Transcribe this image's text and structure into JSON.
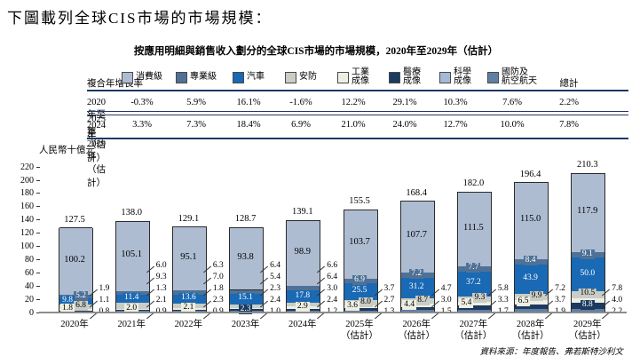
{
  "page": {
    "title": "下圖載列全球CIS市場的市場規模：",
    "source": "資料來源：年度報告、弗若斯特沙利文"
  },
  "table": {
    "row_header": "複合年增長率",
    "total_label": "總計",
    "rows": [
      {
        "label_lines": [
          "2020年至2024年"
        ],
        "values": [
          "-0.3%",
          "5.9%",
          "16.1%",
          "-1.6%",
          "12.2%",
          "29.1%",
          "10.3%",
          "7.6%"
        ],
        "total": "2.2%"
      },
      {
        "label_lines": [
          "2025年（估計）",
          "至2029年（估計）"
        ],
        "values": [
          "3.3%",
          "7.3%",
          "18.4%",
          "6.9%",
          "21.0%",
          "24.0%",
          "12.7%",
          "10.0%"
        ],
        "total": "7.8%"
      }
    ]
  },
  "chart_data": {
    "type": "bar",
    "stacked": true,
    "title": "按應用明細與銷售收入劃分的全球CIS市場的市場規模，2020年至2029年（估計）",
    "unit_label": "人民幣十億元",
    "ylim": [
      0,
      220
    ],
    "ytick_step": 20,
    "grid": false,
    "categories": [
      [
        "2020年"
      ],
      [
        "2021年"
      ],
      [
        "2022年"
      ],
      [
        "2023年"
      ],
      [
        "2024年"
      ],
      [
        "2025年",
        "（估計）"
      ],
      [
        "2026年",
        "（估計）"
      ],
      [
        "2027年",
        "（估計）"
      ],
      [
        "2028年",
        "（估計）"
      ],
      [
        "2029年",
        "（估計）"
      ]
    ],
    "series": [
      {
        "key": "consumer",
        "name": "消費級",
        "label_lines": [
          "消費級"
        ],
        "color": "#aebcd2",
        "text_color": "#000000",
        "values": [
          100.2,
          105.1,
          95.1,
          93.8,
          98.9,
          103.7,
          107.7,
          111.5,
          115.0,
          117.9
        ]
      },
      {
        "key": "professional",
        "name": "專業級",
        "label_lines": [
          "專業級"
        ],
        "color": "#4f7196",
        "text_color": "#ffffff",
        "values": [
          5.2,
          6.0,
          6.3,
          6.4,
          6.6,
          6.9,
          7.2,
          7.7,
          8.4,
          9.1
        ]
      },
      {
        "key": "auto",
        "name": "汽車",
        "label_lines": [
          "汽車"
        ],
        "color": "#1a69b4",
        "text_color": "#ffffff",
        "values": [
          9.8,
          11.4,
          13.6,
          15.1,
          17.8,
          25.5,
          31.2,
          37.2,
          43.9,
          50.0
        ]
      },
      {
        "key": "security",
        "name": "安防",
        "label_lines": [
          "安防"
        ],
        "color": "#cacdc5",
        "text_color": "#000000",
        "values": [
          6.8,
          9.3,
          7.0,
          5.4,
          6.4,
          8.0,
          8.7,
          9.3,
          9.9,
          10.5
        ]
      },
      {
        "key": "industrial",
        "name": "工業成像",
        "label_lines": [
          "工業",
          "成像"
        ],
        "color": "#eeefe3",
        "text_color": "#000000",
        "values": [
          1.8,
          2.0,
          2.1,
          2.3,
          2.9,
          3.6,
          4.4,
          5.4,
          6.5,
          7.8
        ]
      },
      {
        "key": "medical",
        "name": "醫療成像",
        "label_lines": [
          "醫療",
          "成像"
        ],
        "color": "#1c3a60",
        "text_color": "#ffffff",
        "values": [
          1.1,
          1.3,
          1.8,
          2.3,
          3.0,
          3.7,
          4.7,
          5.8,
          7.2,
          8.8
        ]
      },
      {
        "key": "scientific",
        "name": "科學成像",
        "label_lines": [
          "科學",
          "成像"
        ],
        "color": "#a2bad6",
        "text_color": "#000000",
        "values": [
          0.8,
          0.9,
          0.9,
          1.0,
          1.2,
          1.3,
          1.5,
          1.7,
          1.9,
          2.2
        ]
      },
      {
        "key": "defense",
        "name": "國防及航空航天",
        "label_lines": [
          "國防及",
          "航空航天"
        ],
        "color": "#5f80a5",
        "text_color": "#ffffff",
        "values": [
          1.9,
          2.1,
          2.3,
          2.4,
          2.4,
          2.7,
          3.0,
          3.3,
          3.7,
          4.0
        ]
      }
    ],
    "totals": [
      127.5,
      138.0,
      129.1,
      128.7,
      139.1,
      155.5,
      168.4,
      182.0,
      196.4,
      210.3
    ],
    "stack_order_bottom_to_top": [
      "scientific",
      "defense",
      "medical",
      "industrial",
      "security",
      "auto",
      "professional",
      "consumer"
    ],
    "inside_labels": [
      [
        "professional",
        "auto",
        "security",
        "industrial"
      ],
      [
        "auto",
        "industrial"
      ],
      [
        "auto",
        "industrial"
      ],
      [
        "auto",
        "medical"
      ],
      [
        "auto",
        "industrial"
      ],
      [
        "professional",
        "auto",
        "security",
        "industrial"
      ],
      [
        "professional",
        "auto",
        "security",
        "industrial"
      ],
      [
        "professional",
        "auto",
        "security",
        "industrial"
      ],
      [
        "professional",
        "auto",
        "security",
        "industrial"
      ],
      [
        "professional",
        "auto",
        "security",
        "medical"
      ]
    ],
    "side_labels": [
      [
        "defense",
        "medical",
        "scientific"
      ],
      [
        "professional",
        "security",
        "medical",
        "defense",
        "scientific"
      ],
      [
        "professional",
        "security",
        "medical",
        "defense",
        "scientific"
      ],
      [
        "professional",
        "security",
        "industrial",
        "defense",
        "scientific"
      ],
      [
        "professional",
        "security",
        "medical",
        "defense",
        "scientific"
      ],
      [
        "medical",
        "defense",
        "scientific"
      ],
      [
        "medical",
        "defense",
        "scientific"
      ],
      [
        "medical",
        "defense",
        "scientific"
      ],
      [
        "medical",
        "defense",
        "scientific"
      ],
      [
        "industrial",
        "defense",
        "scientific"
      ]
    ]
  }
}
